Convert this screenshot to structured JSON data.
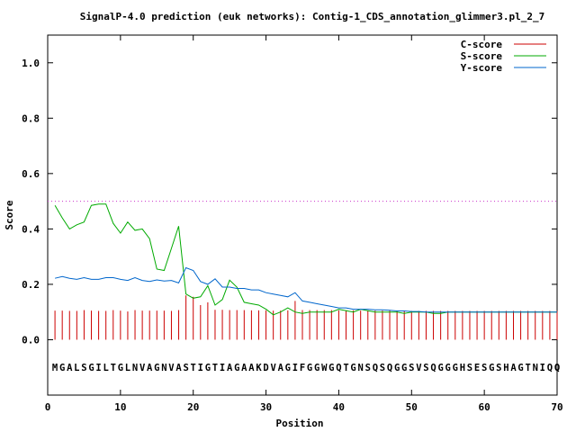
{
  "chart_data": {
    "type": "line",
    "title": "SignalP-4.0 prediction (euk networks): Contig-1_CDS_annotation_glimmer3.pl_2_7",
    "xlabel": "Position",
    "ylabel": "Score",
    "xlim": [
      0,
      70
    ],
    "ylim": [
      -0.2,
      1.1
    ],
    "xticks": [
      0,
      10,
      20,
      30,
      40,
      50,
      60,
      70
    ],
    "yticks": [
      0.0,
      0.2,
      0.4,
      0.6,
      0.8,
      1.0
    ],
    "xtick_labels": [
      "0",
      "10",
      "20",
      "30",
      "40",
      "50",
      "60",
      "70"
    ],
    "ytick_labels": [
      "0.0",
      "0.2",
      "0.4",
      "0.6",
      "0.8",
      "1.0"
    ],
    "threshold": 0.5,
    "threshold_color": "#cc33cc",
    "legend_position": "top-right",
    "sequence": "MGALSGILTGLNVAGNVASTIGTIAGAAKDVAGIFGGWGQTGNSQSQGGSVSQGGGHSESGSHAGTNIQQ",
    "series": [
      {
        "name": "C-score",
        "color": "#cc0000",
        "style": "impulse",
        "x": [
          1,
          2,
          3,
          4,
          5,
          6,
          7,
          8,
          9,
          10,
          11,
          12,
          13,
          14,
          15,
          16,
          17,
          18,
          19,
          20,
          21,
          22,
          23,
          24,
          25,
          26,
          27,
          28,
          29,
          30,
          31,
          32,
          33,
          34,
          35,
          36,
          37,
          38,
          39,
          40,
          41,
          42,
          43,
          44,
          45,
          46,
          47,
          48,
          49,
          50,
          51,
          52,
          53,
          54,
          55,
          56,
          57,
          58,
          59,
          60,
          61,
          62,
          63,
          64,
          65,
          66,
          67,
          68,
          69,
          70
        ],
        "values": [
          0.105,
          0.105,
          0.104,
          0.104,
          0.107,
          0.105,
          0.104,
          0.104,
          0.107,
          0.105,
          0.102,
          0.107,
          0.105,
          0.105,
          0.105,
          0.105,
          0.104,
          0.107,
          0.16,
          0.155,
          0.125,
          0.135,
          0.108,
          0.108,
          0.107,
          0.107,
          0.107,
          0.106,
          0.106,
          0.106,
          0.105,
          0.105,
          0.106,
          0.14,
          0.107,
          0.107,
          0.107,
          0.107,
          0.107,
          0.106,
          0.106,
          0.106,
          0.105,
          0.105,
          0.105,
          0.105,
          0.105,
          0.105,
          0.105,
          0.104,
          0.104,
          0.104,
          0.104,
          0.104,
          0.104,
          0.104,
          0.104,
          0.104,
          0.104,
          0.104,
          0.104,
          0.104,
          0.104,
          0.104,
          0.104,
          0.104,
          0.104,
          0.104,
          0.104,
          0.104
        ]
      },
      {
        "name": "S-score",
        "color": "#00aa00",
        "style": "line",
        "x": [
          1,
          2,
          3,
          4,
          5,
          6,
          7,
          8,
          9,
          10,
          11,
          12,
          13,
          14,
          15,
          16,
          17,
          18,
          19,
          20,
          21,
          22,
          23,
          24,
          25,
          26,
          27,
          28,
          29,
          30,
          31,
          32,
          33,
          34,
          35,
          36,
          37,
          38,
          39,
          40,
          41,
          42,
          43,
          44,
          45,
          46,
          47,
          48,
          49,
          50,
          51,
          52,
          53,
          54,
          55,
          56,
          57,
          58,
          59,
          60,
          61,
          62,
          63,
          64,
          65,
          66,
          67,
          68,
          69,
          70
        ],
        "values": [
          0.485,
          0.44,
          0.4,
          0.415,
          0.425,
          0.485,
          0.49,
          0.49,
          0.42,
          0.385,
          0.425,
          0.395,
          0.4,
          0.365,
          0.255,
          0.25,
          0.33,
          0.41,
          0.165,
          0.15,
          0.155,
          0.195,
          0.125,
          0.145,
          0.215,
          0.19,
          0.135,
          0.13,
          0.125,
          0.11,
          0.09,
          0.1,
          0.115,
          0.1,
          0.095,
          0.1,
          0.1,
          0.1,
          0.1,
          0.11,
          0.105,
          0.1,
          0.11,
          0.105,
          0.1,
          0.1,
          0.1,
          0.1,
          0.095,
          0.1,
          0.1,
          0.1,
          0.095,
          0.095,
          0.1,
          0.1,
          0.1,
          0.1,
          0.1,
          0.1,
          0.1,
          0.1,
          0.1,
          0.1,
          0.1,
          0.1,
          0.1,
          0.1,
          0.1,
          0.1
        ]
      },
      {
        "name": "Y-score",
        "color": "#0066cc",
        "style": "line",
        "x": [
          1,
          2,
          3,
          4,
          5,
          6,
          7,
          8,
          9,
          10,
          11,
          12,
          13,
          14,
          15,
          16,
          17,
          18,
          19,
          20,
          21,
          22,
          23,
          24,
          25,
          26,
          27,
          28,
          29,
          30,
          31,
          32,
          33,
          34,
          35,
          36,
          37,
          38,
          39,
          40,
          41,
          42,
          43,
          44,
          45,
          46,
          47,
          48,
          49,
          50,
          51,
          52,
          53,
          54,
          55,
          56,
          57,
          58,
          59,
          60,
          61,
          62,
          63,
          64,
          65,
          66,
          67,
          68,
          69,
          70
        ],
        "values": [
          0.222,
          0.228,
          0.222,
          0.218,
          0.224,
          0.218,
          0.218,
          0.224,
          0.224,
          0.218,
          0.214,
          0.224,
          0.214,
          0.21,
          0.216,
          0.212,
          0.214,
          0.205,
          0.26,
          0.25,
          0.21,
          0.2,
          0.22,
          0.19,
          0.19,
          0.185,
          0.185,
          0.18,
          0.18,
          0.17,
          0.165,
          0.16,
          0.155,
          0.17,
          0.14,
          0.135,
          0.13,
          0.125,
          0.12,
          0.115,
          0.115,
          0.11,
          0.11,
          0.11,
          0.108,
          0.108,
          0.106,
          0.104,
          0.104,
          0.102,
          0.102,
          0.1,
          0.1,
          0.1,
          0.1,
          0.1,
          0.1,
          0.1,
          0.1,
          0.1,
          0.1,
          0.1,
          0.1,
          0.1,
          0.1,
          0.1,
          0.1,
          0.1,
          0.1,
          0.1
        ]
      }
    ]
  }
}
